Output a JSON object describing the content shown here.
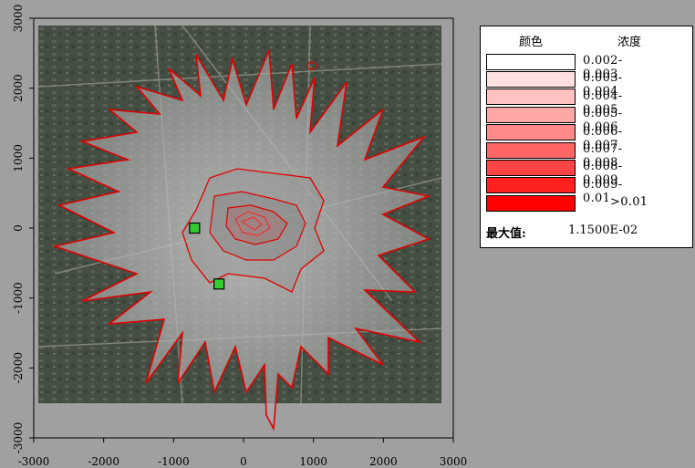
{
  "map": {
    "x_ticks": [
      "-3000",
      "-2000",
      "-1000",
      "0",
      "1000",
      "2000",
      "3000"
    ],
    "y_ticks": [
      "3000",
      "2000",
      "1000",
      "0",
      "-1000",
      "-2000",
      "-3000"
    ],
    "x_range": [
      -3000,
      3000
    ],
    "y_range": [
      -3000,
      3000
    ],
    "contour_color": "#e00000",
    "receptor_color": "#33cc33",
    "receptors": [
      {
        "x": -700,
        "y": 0
      },
      {
        "x": -350,
        "y": -800
      }
    ]
  },
  "legend": {
    "header_color": "颜色",
    "header_concentration": "浓度",
    "rows": [
      {
        "label": "0.002-0.003",
        "color": "#ffffff"
      },
      {
        "label": "0.003-0.004",
        "color": "#ffe0e0"
      },
      {
        "label": "0.004-0.005",
        "color": "#ffc2c2"
      },
      {
        "label": "0.005-0.006",
        "color": "#ffa6a6"
      },
      {
        "label": "0.006-0.007",
        "color": "#ff8a8a"
      },
      {
        "label": "0.007-0.008",
        "color": "#ff6666"
      },
      {
        "label": "0.008-0.009",
        "color": "#ff4444"
      },
      {
        "label": "0.009-0.01",
        "color": "#ff2020"
      },
      {
        "label": ">0.01",
        "color": "#ff0000"
      }
    ],
    "max_label": "最大值:",
    "max_value": "1.1500E-02"
  }
}
